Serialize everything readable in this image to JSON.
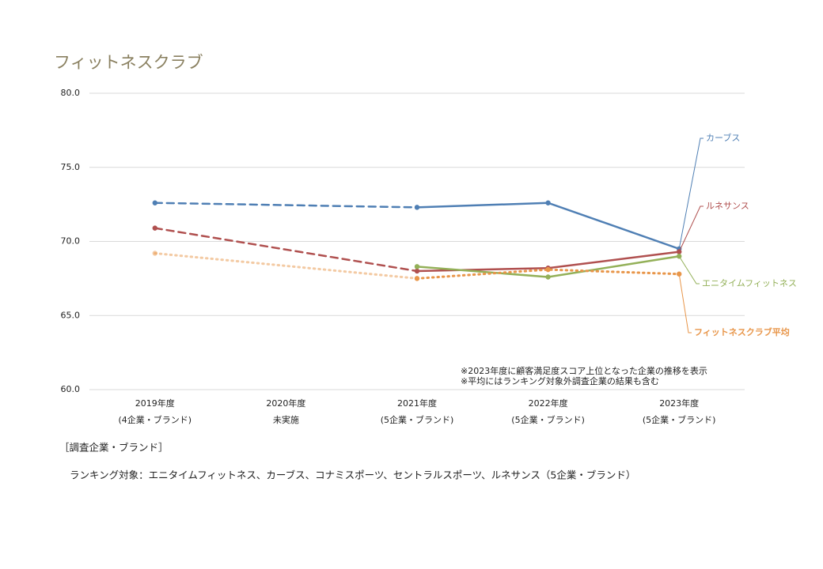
{
  "chart_data": {
    "type": "line",
    "title": "フィットネスクラブ",
    "categories": [
      "2019年度",
      "2020年度",
      "2021年度",
      "2022年度",
      "2023年度"
    ],
    "category_sublabels": [
      "(4企業・ブランド)",
      "未実施",
      "(5企業・ブランド)",
      "(5企業・ブランド)",
      "(5企業・ブランド)"
    ],
    "series": [
      {
        "name": "カーブス",
        "color": "#4f7fb4",
        "style": "solid",
        "values": [
          72.6,
          null,
          72.3,
          72.6,
          69.5
        ]
      },
      {
        "name": "ルネサンス",
        "color": "#b0504f",
        "style": "solid",
        "values": [
          70.9,
          null,
          68.0,
          68.2,
          69.3
        ]
      },
      {
        "name": "エニタイムフィットネス",
        "color": "#93b058",
        "style": "solid",
        "values": [
          null,
          null,
          68.3,
          67.6,
          69.0
        ]
      },
      {
        "name": "フィットネスクラブ平均",
        "color": "#e8964a",
        "style": "dotted",
        "values": [
          69.2,
          null,
          67.5,
          68.1,
          67.8
        ]
      }
    ],
    "ylim": [
      60,
      80
    ],
    "yticks": [
      {
        "value": 60,
        "label": "60.0"
      },
      {
        "value": 65,
        "label": "65.0"
      },
      {
        "value": 70,
        "label": "70.0"
      },
      {
        "value": 75,
        "label": "75.0"
      },
      {
        "value": 80,
        "label": "80.0"
      }
    ],
    "grid": true,
    "notes": [
      "※2023年度に顧客満足度スコア上位となった企業の推移を表示",
      "※平均にはランキング対象外調査企業の結果も含む"
    ]
  },
  "footer": {
    "heading": "［調査企業・ブランド］",
    "text": "ランキング対象：エニタイムフィットネス、カーブス、コナミスポーツ、セントラルスポーツ、ルネサンス（5企業・ブランド）"
  }
}
